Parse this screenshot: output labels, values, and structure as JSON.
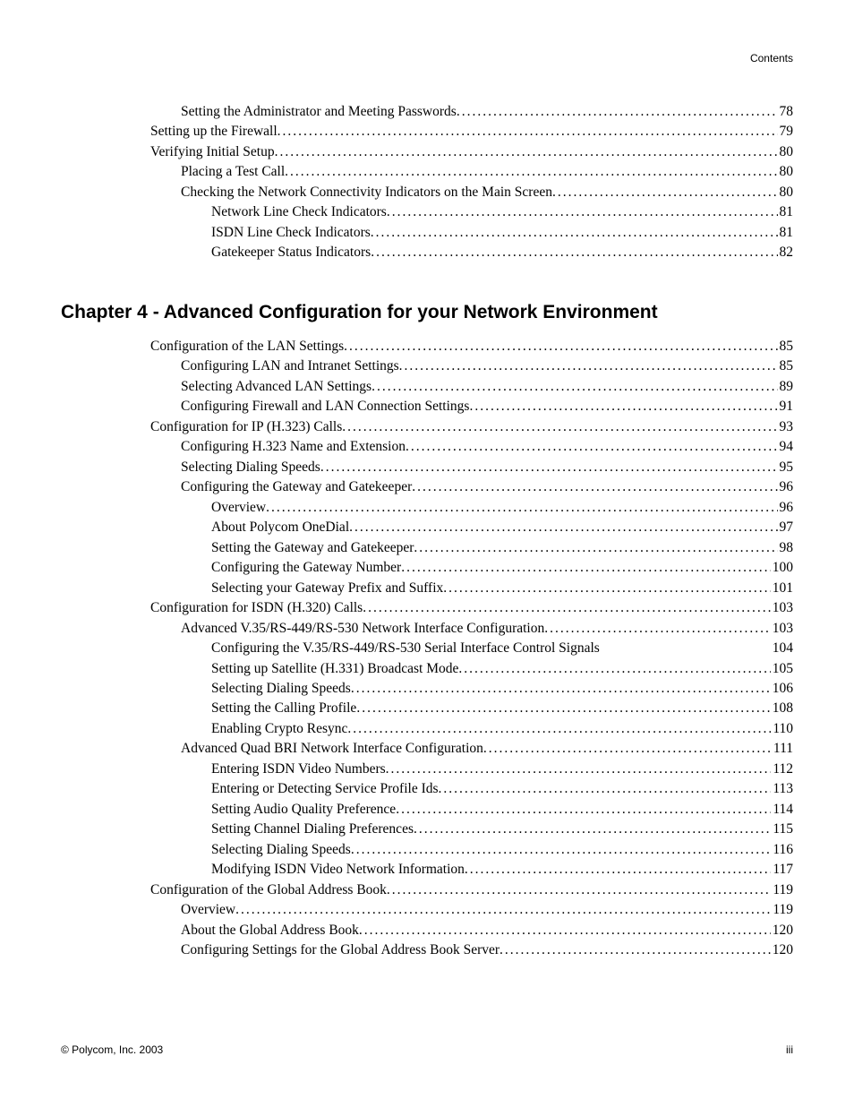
{
  "header_label": "Contents",
  "section1": {
    "entries": [
      {
        "text": "Setting the Administrator and Meeting Passwords",
        "page": "78",
        "indent": 1
      },
      {
        "text": "Setting up the Firewall ",
        "page": "79",
        "indent": 0
      },
      {
        "text": "Verifying Initial Setup ",
        "page": "80",
        "indent": 0
      },
      {
        "text": "Placing a Test Call",
        "page": "80",
        "indent": 1
      },
      {
        "text": "Checking the Network Connectivity Indicators on the Main Screen",
        "page": "80",
        "indent": 1
      },
      {
        "text": "Network Line Check Indicators ",
        "page": "81",
        "indent": 2
      },
      {
        "text": "ISDN Line Check Indicators ",
        "page": "81",
        "indent": 2
      },
      {
        "text": "Gatekeeper Status Indicators ",
        "page": "82",
        "indent": 2
      }
    ]
  },
  "chapter_heading": "Chapter 4 - Advanced Configuration for your Network Environment",
  "section2": {
    "entries": [
      {
        "text": "Configuration of the LAN Settings ",
        "page": "85",
        "indent": 0
      },
      {
        "text": "Configuring LAN and Intranet Settings",
        "page": "85",
        "indent": 1
      },
      {
        "text": "Selecting Advanced LAN Settings ",
        "page": "89",
        "indent": 1
      },
      {
        "text": "Configuring Firewall and LAN Connection Settings ",
        "page": "91",
        "indent": 1
      },
      {
        "text": "Configuration for IP (H.323) Calls ",
        "page": "93",
        "indent": 0
      },
      {
        "text": "Configuring H.323 Name and Extension ",
        "page": "94",
        "indent": 1
      },
      {
        "text": "Selecting Dialing Speeds",
        "page": "95",
        "indent": 1
      },
      {
        "text": "Configuring the Gateway and Gatekeeper ",
        "page": "96",
        "indent": 1
      },
      {
        "text": "Overview ",
        "page": "96",
        "indent": 2
      },
      {
        "text": "About Polycom OneDial",
        "page": "97",
        "indent": 2
      },
      {
        "text": "Setting the Gateway and Gatekeeper ",
        "page": "98",
        "indent": 2
      },
      {
        "text": "Configuring the Gateway Number",
        "page": "100",
        "indent": 2
      },
      {
        "text": "Selecting your Gateway Prefix and Suffix ",
        "page": "101",
        "indent": 2
      },
      {
        "text": "Configuration for ISDN (H.320) Calls ",
        "page": "103",
        "indent": 0
      },
      {
        "text": "Advanced V.35/RS-449/RS-530 Network Interface Configuration",
        "page": "103",
        "indent": 1
      },
      {
        "text": "Configuring the V.35/RS-449/RS-530 Serial Interface Control Signals",
        "page": "104",
        "indent": 2,
        "nodots": true
      },
      {
        "text": "Setting up Satellite (H.331) Broadcast Mode ",
        "page": "105",
        "indent": 2
      },
      {
        "text": "Selecting Dialing Speeds",
        "page": "106",
        "indent": 2
      },
      {
        "text": "Setting the Calling Profile",
        "page": "108",
        "indent": 2
      },
      {
        "text": "Enabling Crypto Resync ",
        "page": "110",
        "indent": 2
      },
      {
        "text": "Advanced Quad BRI Network Interface Configuration ",
        "page": "111",
        "indent": 1
      },
      {
        "text": "Entering ISDN Video Numbers",
        "page": "112",
        "indent": 2
      },
      {
        "text": "Entering or Detecting Service Profile Ids ",
        "page": "113",
        "indent": 2
      },
      {
        "text": "Setting Audio Quality Preference ",
        "page": "114",
        "indent": 2
      },
      {
        "text": "Setting Channel Dialing Preferences ",
        "page": "115",
        "indent": 2
      },
      {
        "text": "Selecting Dialing Speeds",
        "page": "116",
        "indent": 2
      },
      {
        "text": "Modifying ISDN Video Network Information",
        "page": "117",
        "indent": 2
      },
      {
        "text": "Configuration of the Global Address Book  ",
        "page": "119",
        "indent": 0
      },
      {
        "text": "Overview",
        "page": "119",
        "indent": 1
      },
      {
        "text": "About the Global Address Book",
        "page": "120",
        "indent": 1
      },
      {
        "text": "Configuring Settings for the Global Address Book Server",
        "page": "120",
        "indent": 1
      }
    ]
  },
  "footer_left": "© Polycom, Inc. 2003",
  "footer_right": "iii"
}
